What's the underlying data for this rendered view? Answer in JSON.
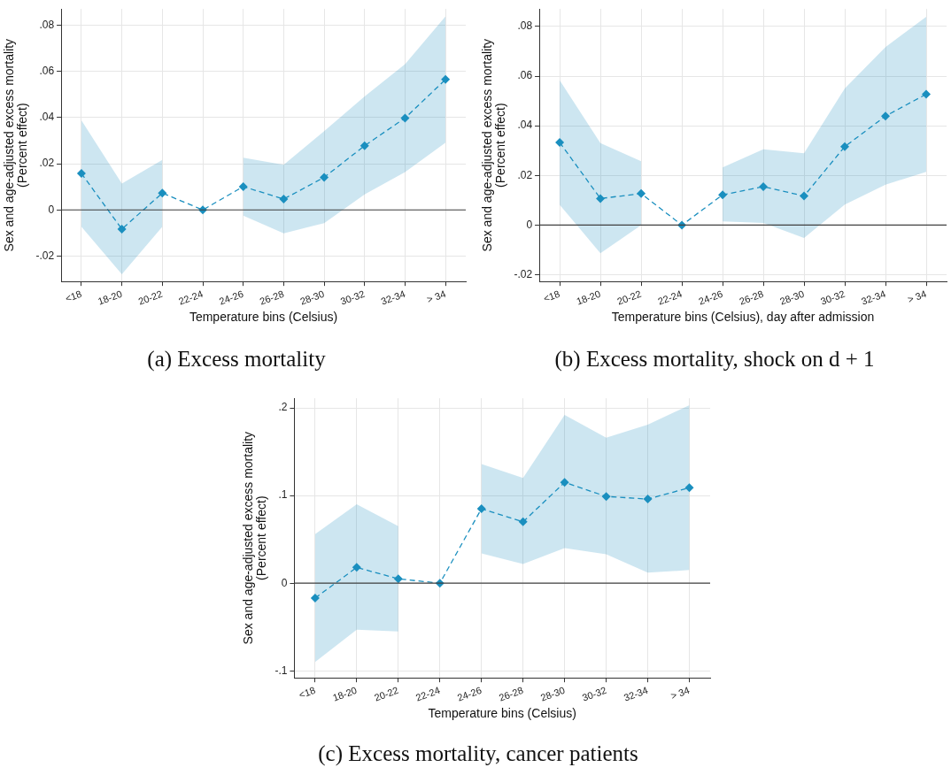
{
  "chart_data": [
    {
      "type": "line",
      "xlabel": "Temperature bins (Celsius)",
      "ylabel": "Sex and age-adjusted excess mortality\n(Percent effect)",
      "categories": [
        "<18",
        "18-20",
        "20-22",
        "22-24",
        "24-26",
        "26-28",
        "28-30",
        "30-32",
        "32-34",
        "> 34"
      ],
      "series": [
        {
          "color": "#1a8fbf",
          "values": [
            0.0158,
            -0.0083,
            0.0073,
            0,
            0.0101,
            0.0047,
            0.0141,
            0.0278,
            0.0398,
            0.0565
          ],
          "upper": [
            0.0388,
            0.0114,
            0.0217,
            null,
            0.0226,
            0.0195,
            0.0341,
            0.0491,
            0.0631,
            0.0838
          ],
          "lower": [
            -0.0073,
            -0.0279,
            -0.0073,
            null,
            -0.0025,
            -0.0101,
            -0.0057,
            0.0067,
            0.0164,
            0.0291
          ]
        }
      ],
      "ylim": [
        -0.031,
        0.087
      ],
      "yticks": [
        {
          "value": -0.02,
          "label": "-.02"
        },
        {
          "value": 0,
          "label": "0"
        },
        {
          "value": 0.02,
          "label": ".02"
        },
        {
          "value": 0.04,
          "label": ".04"
        },
        {
          "value": 0.06,
          "label": ".06"
        },
        {
          "value": 0.08,
          "label": ".08"
        }
      ],
      "ref_lines": [
        {
          "axis": "y",
          "value": 0,
          "color": "#404040"
        }
      ],
      "grid": true,
      "legend": false,
      "marker": "diamond",
      "line_style": "dashed",
      "annotations": [
        "(a) Excess mortality"
      ]
    },
    {
      "type": "line",
      "xlabel": "Temperature bins (Celsius), day after admission",
      "ylabel": "Sex and age-adjusted excess mortality\n(Percent effect)",
      "categories": [
        "<18",
        "18-20",
        "20-22",
        "22-24",
        "24-26",
        "26-28",
        "28-30",
        "30-32",
        "32-34",
        "> 34"
      ],
      "series": [
        {
          "color": "#1a8fbf",
          "values": [
            0.0333,
            0.0107,
            0.0127,
            0,
            0.0122,
            0.0155,
            0.0117,
            0.0316,
            0.0439,
            0.0527
          ],
          "upper": [
            0.0583,
            0.033,
            0.0257,
            null,
            0.0232,
            0.0305,
            0.0289,
            0.055,
            0.0717,
            0.0839
          ],
          "lower": [
            0.0082,
            -0.0113,
            0,
            null,
            0.0015,
            0.0009,
            -0.0052,
            0.0083,
            0.0163,
            0.0214
          ]
        }
      ],
      "ylim": [
        -0.0227,
        0.087
      ],
      "yticks": [
        {
          "value": -0.02,
          "label": "-.02"
        },
        {
          "value": 0,
          "label": "0"
        },
        {
          "value": 0.02,
          "label": ".02"
        },
        {
          "value": 0.04,
          "label": ".04"
        },
        {
          "value": 0.06,
          "label": ".06"
        },
        {
          "value": 0.08,
          "label": ".08"
        }
      ],
      "ref_lines": [
        {
          "axis": "y",
          "value": 0,
          "color": "#404040"
        }
      ],
      "grid": true,
      "legend": false,
      "marker": "diamond",
      "line_style": "dashed",
      "annotations": [
        "(b) Excess mortality, shock on d + 1"
      ]
    },
    {
      "type": "line",
      "xlabel": "Temperature bins (Celsius)",
      "ylabel": "Sex and age-adjusted excess mortality\n(Percent effect)",
      "categories": [
        "<18",
        "18-20",
        "20-22",
        "22-24",
        "24-26",
        "26-28",
        "28-30",
        "30-32",
        "32-34",
        "> 34"
      ],
      "series": [
        {
          "color": "#1a8fbf",
          "values": [
            -0.017,
            0.018,
            0.005,
            0,
            0.085,
            0.07,
            0.115,
            0.099,
            0.096,
            0.109
          ],
          "upper": [
            0.056,
            0.09,
            0.065,
            null,
            0.136,
            0.12,
            0.192,
            0.166,
            0.181,
            0.203
          ],
          "lower": [
            -0.09,
            -0.053,
            -0.055,
            null,
            0.034,
            0.022,
            0.04,
            0.033,
            0.012,
            0.015
          ]
        }
      ],
      "ylim": [
        -0.108,
        0.211
      ],
      "yticks": [
        {
          "value": -0.1,
          "label": "-.1"
        },
        {
          "value": 0,
          "label": "0"
        },
        {
          "value": 0.1,
          "label": ".1"
        },
        {
          "value": 0.2,
          "label": ".2"
        }
      ],
      "ref_lines": [
        {
          "axis": "y",
          "value": 0,
          "color": "#404040"
        }
      ],
      "grid": true,
      "legend": false,
      "marker": "diamond",
      "line_style": "dashed",
      "annotations": [
        "(c) Excess mortality, cancer patients"
      ]
    }
  ]
}
